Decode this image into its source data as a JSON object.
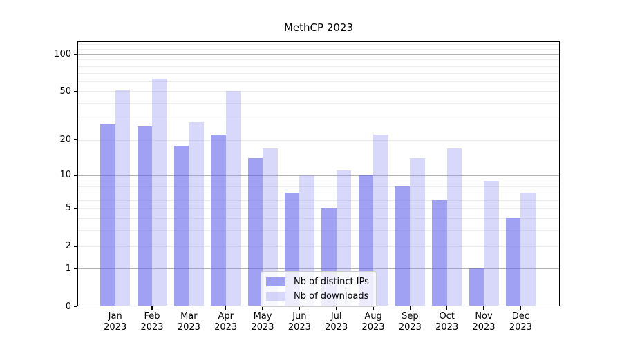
{
  "chart_data": {
    "type": "bar",
    "title": "MethCP 2023",
    "categories": [
      "Jan",
      "Feb",
      "Mar",
      "Apr",
      "May",
      "Jun",
      "Jul",
      "Aug",
      "Sep",
      "Oct",
      "Nov",
      "Dec"
    ],
    "year_label": "2023",
    "series": [
      {
        "name": "Nb of distinct IPs",
        "key": "distinct-ips",
        "color": "rgba(104,104,235,0.62)",
        "color_solid": "#a4a4f2",
        "values": [
          27,
          26,
          18,
          22,
          14,
          7,
          5,
          10,
          8,
          6,
          1,
          4
        ]
      },
      {
        "name": "Nb of downloads",
        "key": "downloads",
        "color": "rgba(150,150,242,0.37)",
        "color_solid": "#d9d9fa",
        "values": [
          51,
          63,
          28,
          50,
          17,
          10,
          11,
          22,
          14,
          17,
          9,
          7
        ]
      }
    ],
    "xlabel": "",
    "ylabel": "",
    "yscale": "log1p",
    "ylim": [
      0,
      126
    ],
    "yticks": [
      {
        "label": "0",
        "value": 0
      },
      {
        "label": "1",
        "value": 1
      },
      {
        "label": "2",
        "value": 2
      },
      {
        "label": "5",
        "value": 5
      },
      {
        "label": "10",
        "value": 10
      },
      {
        "label": "20",
        "value": 20
      },
      {
        "label": "50",
        "value": 50
      },
      {
        "label": "100",
        "value": 100
      }
    ],
    "grid": {
      "major_values": [
        1,
        10,
        100
      ],
      "minor_values": [
        2,
        3,
        4,
        5,
        6,
        7,
        8,
        9,
        20,
        30,
        40,
        50,
        60,
        70,
        80,
        90,
        110,
        120
      ],
      "major_color": "#b0b0b0",
      "minor_color": "#ececec"
    },
    "legend_position": "lower center"
  }
}
